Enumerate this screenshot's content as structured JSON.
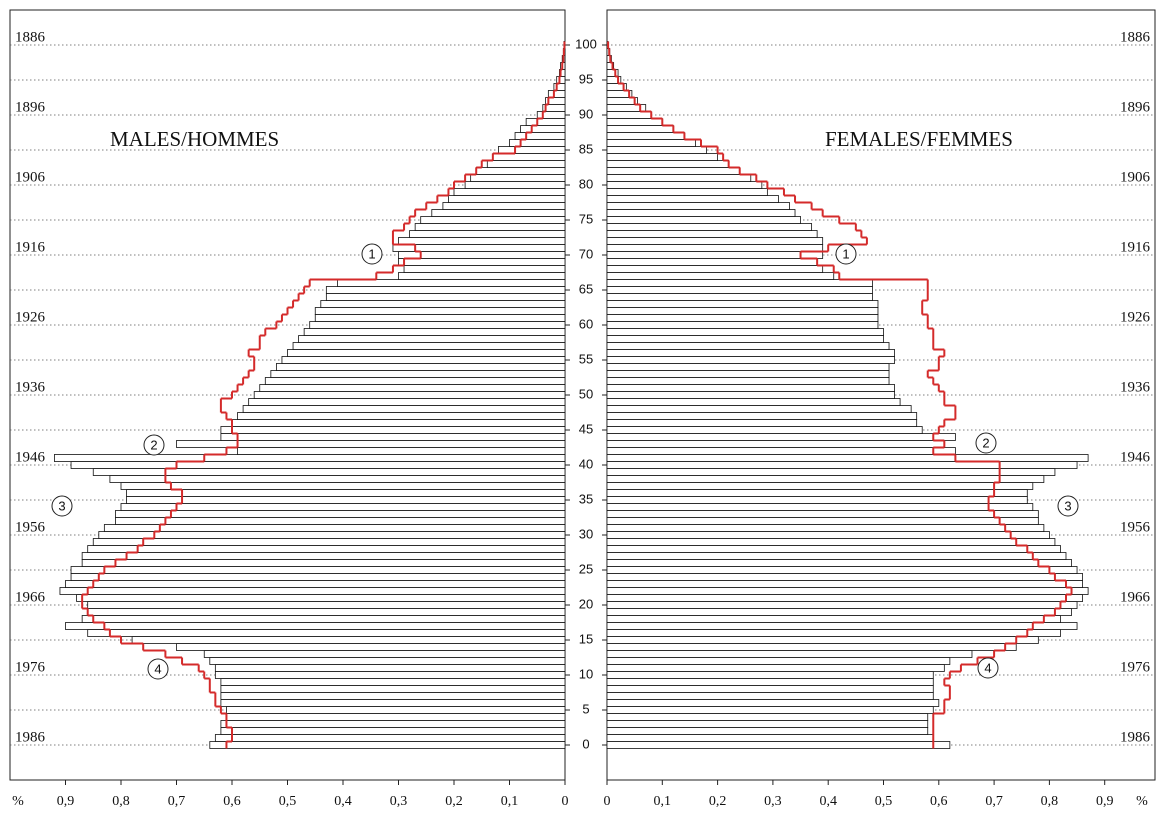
{
  "chart_data": [
    {
      "type": "bar",
      "orientation": "horizontal",
      "x_reversed": true,
      "title": "MALES/HOMMES",
      "color": "#ffffff",
      "edge_color": "#111111",
      "reference_color": "#d42a2a",
      "y": [
        0,
        1,
        2,
        3,
        4,
        5,
        6,
        7,
        8,
        9,
        10,
        11,
        12,
        13,
        14,
        15,
        16,
        17,
        18,
        19,
        20,
        21,
        22,
        23,
        24,
        25,
        26,
        27,
        28,
        29,
        30,
        31,
        32,
        33,
        34,
        35,
        36,
        37,
        38,
        39,
        40,
        41,
        42,
        43,
        44,
        45,
        46,
        47,
        48,
        49,
        50,
        51,
        52,
        53,
        54,
        55,
        56,
        57,
        58,
        59,
        60,
        61,
        62,
        63,
        64,
        65,
        66,
        67,
        68,
        69,
        70,
        71,
        72,
        73,
        74,
        75,
        76,
        77,
        78,
        79,
        80,
        81,
        82,
        83,
        84,
        85,
        86,
        87,
        88,
        89,
        90,
        91,
        92,
        93,
        94,
        95,
        96,
        97,
        98,
        99,
        100
      ],
      "values": [
        0.64,
        0.63,
        0.62,
        0.62,
        0.61,
        0.61,
        0.62,
        0.62,
        0.62,
        0.62,
        0.63,
        0.63,
        0.64,
        0.65,
        0.7,
        0.78,
        0.86,
        0.9,
        0.87,
        0.86,
        0.86,
        0.88,
        0.91,
        0.9,
        0.89,
        0.89,
        0.87,
        0.87,
        0.86,
        0.85,
        0.84,
        0.83,
        0.81,
        0.81,
        0.8,
        0.79,
        0.79,
        0.8,
        0.82,
        0.85,
        0.89,
        0.92,
        0.59,
        0.7,
        0.62,
        0.62,
        0.6,
        0.59,
        0.58,
        0.57,
        0.56,
        0.55,
        0.54,
        0.53,
        0.52,
        0.51,
        0.5,
        0.49,
        0.48,
        0.47,
        0.46,
        0.45,
        0.45,
        0.44,
        0.43,
        0.43,
        0.41,
        0.3,
        0.29,
        0.3,
        0.3,
        0.31,
        0.3,
        0.28,
        0.27,
        0.26,
        0.24,
        0.22,
        0.21,
        0.2,
        0.18,
        0.17,
        0.16,
        0.14,
        0.13,
        0.12,
        0.1,
        0.09,
        0.08,
        0.07,
        0.05,
        0.04,
        0.035,
        0.03,
        0.02,
        0.015,
        0.01,
        0.008,
        0.005,
        0.003,
        0.002
      ],
      "reference": [
        0.61,
        0.6,
        0.6,
        0.61,
        0.61,
        0.62,
        0.63,
        0.63,
        0.64,
        0.64,
        0.65,
        0.66,
        0.69,
        0.72,
        0.76,
        0.8,
        0.82,
        0.83,
        0.85,
        0.86,
        0.87,
        0.87,
        0.86,
        0.85,
        0.84,
        0.83,
        0.81,
        0.79,
        0.77,
        0.76,
        0.74,
        0.73,
        0.72,
        0.71,
        0.7,
        0.69,
        0.69,
        0.71,
        0.72,
        0.72,
        0.7,
        0.65,
        0.61,
        0.59,
        0.59,
        0.6,
        0.6,
        0.61,
        0.62,
        0.62,
        0.6,
        0.59,
        0.58,
        0.57,
        0.56,
        0.56,
        0.57,
        0.55,
        0.55,
        0.54,
        0.52,
        0.51,
        0.5,
        0.49,
        0.48,
        0.47,
        0.46,
        0.34,
        0.31,
        0.29,
        0.26,
        0.27,
        0.31,
        0.31,
        0.29,
        0.28,
        0.27,
        0.25,
        0.23,
        0.21,
        0.2,
        0.18,
        0.16,
        0.15,
        0.13,
        0.09,
        0.08,
        0.07,
        0.06,
        0.05,
        0.04,
        0.035,
        0.03,
        0.02,
        0.015,
        0.01,
        0.008,
        0.005,
        0.003,
        0.002,
        0.001
      ],
      "xlim": [
        0,
        1
      ],
      "x_label": "%",
      "xticks": [
        0,
        {
          "value": 0.1,
          "label": "0,1"
        },
        {
          "value": 0.2,
          "label": "0,2"
        },
        {
          "value": 0.3,
          "label": "0,3"
        },
        {
          "value": 0.4,
          "label": "0,4"
        },
        {
          "value": 0.5,
          "label": "0,5"
        },
        {
          "value": 0.6,
          "label": "0,6"
        },
        {
          "value": 0.7,
          "label": "0,7"
        },
        {
          "value": 0.8,
          "label": "0,8"
        },
        {
          "value": 0.9,
          "label": "0,9"
        }
      ],
      "ylim": [
        -5,
        105
      ],
      "yticks": [
        0,
        5,
        10,
        15,
        20,
        25,
        30,
        35,
        40,
        45,
        50,
        55,
        60,
        65,
        70,
        75,
        80,
        85,
        90,
        95,
        100
      ],
      "y2lim": [
        1992,
        1882
      ],
      "y2ticks": [
        1886,
        1896,
        1906,
        1916,
        1926,
        1936,
        1946,
        1956,
        1966,
        1976,
        1986
      ],
      "grid": true,
      "annotations": [
        "1",
        "2",
        "3",
        "4"
      ]
    },
    {
      "type": "bar",
      "orientation": "horizontal",
      "x_reversed": false,
      "title": "FEMALES/FEMMES",
      "color": "#ffffff",
      "edge_color": "#111111",
      "reference_color": "#d42a2a",
      "y": [
        0,
        1,
        2,
        3,
        4,
        5,
        6,
        7,
        8,
        9,
        10,
        11,
        12,
        13,
        14,
        15,
        16,
        17,
        18,
        19,
        20,
        21,
        22,
        23,
        24,
        25,
        26,
        27,
        28,
        29,
        30,
        31,
        32,
        33,
        34,
        35,
        36,
        37,
        38,
        39,
        40,
        41,
        42,
        43,
        44,
        45,
        46,
        47,
        48,
        49,
        50,
        51,
        52,
        53,
        54,
        55,
        56,
        57,
        58,
        59,
        60,
        61,
        62,
        63,
        64,
        65,
        66,
        67,
        68,
        69,
        70,
        71,
        72,
        73,
        74,
        75,
        76,
        77,
        78,
        79,
        80,
        81,
        82,
        83,
        84,
        85,
        86,
        87,
        88,
        89,
        90,
        91,
        92,
        93,
        94,
        95,
        96,
        97,
        98,
        99,
        100
      ],
      "values": [
        0.62,
        0.59,
        0.58,
        0.58,
        0.58,
        0.59,
        0.6,
        0.59,
        0.59,
        0.59,
        0.59,
        0.61,
        0.62,
        0.66,
        0.74,
        0.78,
        0.82,
        0.85,
        0.82,
        0.84,
        0.85,
        0.86,
        0.87,
        0.86,
        0.86,
        0.85,
        0.84,
        0.83,
        0.82,
        0.81,
        0.8,
        0.79,
        0.78,
        0.78,
        0.77,
        0.76,
        0.76,
        0.77,
        0.79,
        0.81,
        0.85,
        0.87,
        0.63,
        0.61,
        0.63,
        0.57,
        0.56,
        0.56,
        0.55,
        0.53,
        0.52,
        0.52,
        0.51,
        0.51,
        0.51,
        0.52,
        0.52,
        0.51,
        0.5,
        0.5,
        0.49,
        0.49,
        0.49,
        0.49,
        0.48,
        0.48,
        0.48,
        0.41,
        0.39,
        0.38,
        0.39,
        0.39,
        0.39,
        0.38,
        0.37,
        0.35,
        0.34,
        0.33,
        0.31,
        0.29,
        0.28,
        0.26,
        0.24,
        0.22,
        0.2,
        0.18,
        0.16,
        0.14,
        0.12,
        0.1,
        0.08,
        0.07,
        0.055,
        0.045,
        0.035,
        0.025,
        0.02,
        0.012,
        0.008,
        0.005,
        0.002
      ],
      "reference": [
        0.59,
        0.59,
        0.59,
        0.59,
        0.59,
        0.61,
        0.61,
        0.62,
        0.62,
        0.61,
        0.62,
        0.64,
        0.67,
        0.7,
        0.72,
        0.74,
        0.76,
        0.77,
        0.79,
        0.81,
        0.82,
        0.83,
        0.84,
        0.83,
        0.81,
        0.8,
        0.78,
        0.77,
        0.76,
        0.74,
        0.73,
        0.72,
        0.71,
        0.7,
        0.69,
        0.69,
        0.7,
        0.7,
        0.71,
        0.71,
        0.71,
        0.63,
        0.59,
        0.61,
        0.59,
        0.6,
        0.61,
        0.63,
        0.63,
        0.61,
        0.61,
        0.6,
        0.59,
        0.58,
        0.6,
        0.6,
        0.61,
        0.59,
        0.59,
        0.59,
        0.58,
        0.58,
        0.57,
        0.57,
        0.58,
        0.58,
        0.58,
        0.42,
        0.41,
        0.38,
        0.35,
        0.4,
        0.47,
        0.46,
        0.45,
        0.42,
        0.39,
        0.37,
        0.34,
        0.32,
        0.29,
        0.27,
        0.24,
        0.22,
        0.21,
        0.2,
        0.17,
        0.14,
        0.12,
        0.1,
        0.08,
        0.06,
        0.05,
        0.04,
        0.03,
        0.02,
        0.015,
        0.01,
        0.006,
        0.004,
        0.002
      ],
      "xlim": [
        0,
        1
      ],
      "x_label": "%",
      "xticks": [
        0,
        {
          "value": 0.1,
          "label": "0,1"
        },
        {
          "value": 0.2,
          "label": "0,2"
        },
        {
          "value": 0.3,
          "label": "0,3"
        },
        {
          "value": 0.4,
          "label": "0,4"
        },
        {
          "value": 0.5,
          "label": "0,5"
        },
        {
          "value": 0.6,
          "label": "0,6"
        },
        {
          "value": 0.7,
          "label": "0,7"
        },
        {
          "value": 0.8,
          "label": "0,8"
        },
        {
          "value": 0.9,
          "label": "0,9"
        }
      ],
      "ylim": [
        -5,
        105
      ],
      "yticks": [
        0,
        5,
        10,
        15,
        20,
        25,
        30,
        35,
        40,
        45,
        50,
        55,
        60,
        65,
        70,
        75,
        80,
        85,
        90,
        95,
        100
      ],
      "y2lim": [
        1992,
        1882
      ],
      "y2ticks": [
        1886,
        1896,
        1906,
        1916,
        1926,
        1936,
        1946,
        1956,
        1966,
        1976,
        1986
      ],
      "grid": true,
      "annotations": [
        "1",
        "2",
        "3",
        "4"
      ]
    }
  ]
}
